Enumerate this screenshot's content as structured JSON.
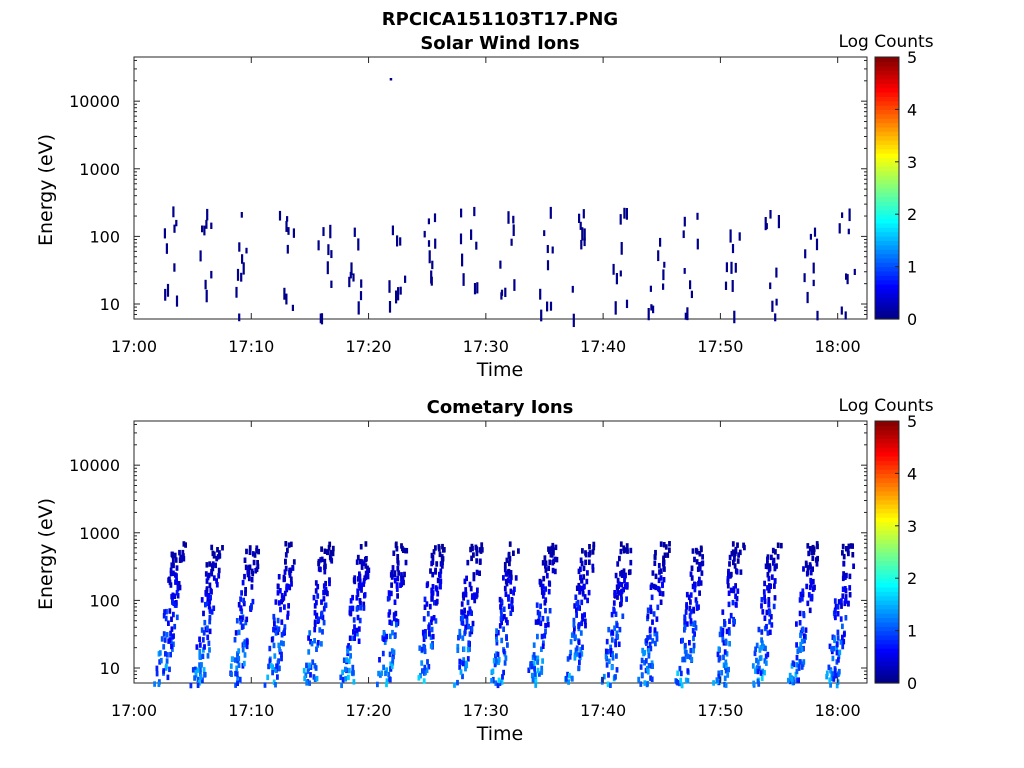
{
  "figure_title": "RPCICA151103T17.PNG",
  "chart_data": [
    {
      "type": "heatmap",
      "title": "Solar Wind Ions",
      "xlabel": "Time",
      "ylabel": "Energy (eV)",
      "x_ticks": [
        "17:00",
        "17:10",
        "17:20",
        "17:30",
        "17:40",
        "17:50",
        "18:00"
      ],
      "x_range_minutes": [
        0,
        62.5
      ],
      "y_scale": "log",
      "y_ticks": [
        "10",
        "100",
        "1000",
        "10000"
      ],
      "y_range_eV": [
        6,
        45000
      ],
      "colorbar": {
        "title": "Log Counts",
        "ticks": [
          "0",
          "1",
          "2",
          "3",
          "4",
          "5"
        ],
        "range": [
          0,
          5
        ],
        "colormap": "jet"
      },
      "description_values": "sparse single-count events (log counts ~0) mostly between 10 and 400 eV, one event near 22000 eV at about 17:22",
      "scan_times_minutes": [
        3,
        6.2,
        9.2,
        12.8,
        16.2,
        19,
        22.3,
        25.4,
        28.5,
        31.8,
        35,
        38,
        41.5,
        44.5,
        47.5,
        51,
        54.2,
        57.5,
        60.8
      ],
      "level": 0.05
    },
    {
      "type": "heatmap",
      "title": "Cometary Ions",
      "xlabel": "Time",
      "ylabel": "Energy (eV)",
      "x_ticks": [
        "17:00",
        "17:10",
        "17:20",
        "17:30",
        "17:40",
        "17:50",
        "18:00"
      ],
      "x_range_minutes": [
        0,
        62.5
      ],
      "y_scale": "log",
      "y_ticks": [
        "10",
        "100",
        "1000",
        "10000"
      ],
      "y_range_eV": [
        6,
        45000
      ],
      "colorbar": {
        "title": "Log Counts",
        "ticks": [
          "0",
          "1",
          "2",
          "3",
          "4",
          "5"
        ],
        "range": [
          0,
          5
        ],
        "colormap": "jet"
      },
      "description_values": "periodic energy sweeps every ~3.2 minutes from ~6 eV up to ~700 eV, peak log counts ~1.5 near 20-40 eV",
      "scan_times_minutes": [
        2.7,
        5.8,
        9,
        12.1,
        15.3,
        18.5,
        21.6,
        24.8,
        28,
        31.2,
        34.4,
        37.6,
        40.8,
        43.9,
        47.1,
        50.3,
        53.5,
        56.7,
        59.8
      ],
      "level": 1.5
    }
  ]
}
